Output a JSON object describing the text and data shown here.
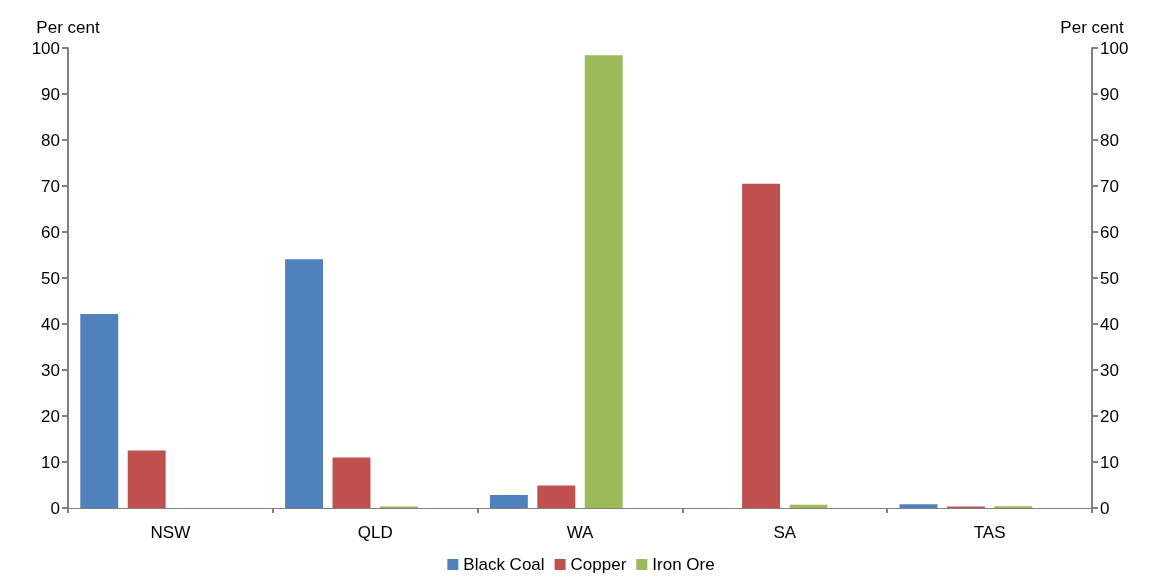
{
  "chart_data": {
    "type": "bar",
    "ylabel": "Per cent",
    "y2label": "Per cent",
    "categories": [
      "NSW",
      "QLD",
      "WA",
      "SA",
      "TAS"
    ],
    "series": [
      {
        "name": "Black Coal",
        "color": "#4f81bd",
        "values": [
          42.2,
          54.1,
          2.8,
          0,
          0.8
        ]
      },
      {
        "name": "Copper",
        "color": "#c0504d",
        "values": [
          12.5,
          11,
          4.9,
          70.5,
          0.3
        ]
      },
      {
        "name": "Iron Ore",
        "color": "#9bbb59",
        "values": [
          0,
          0.3,
          98.4,
          0.7,
          0.4
        ]
      }
    ],
    "ylim": [
      0,
      100
    ],
    "yticks": [
      0,
      10,
      20,
      30,
      40,
      50,
      60,
      70,
      80,
      90,
      100
    ],
    "y2lim": [
      0,
      100
    ],
    "y2ticks": [
      0,
      10,
      20,
      30,
      40,
      50,
      60,
      70,
      80,
      90,
      100
    ],
    "grid": false,
    "legend": "bottom"
  }
}
